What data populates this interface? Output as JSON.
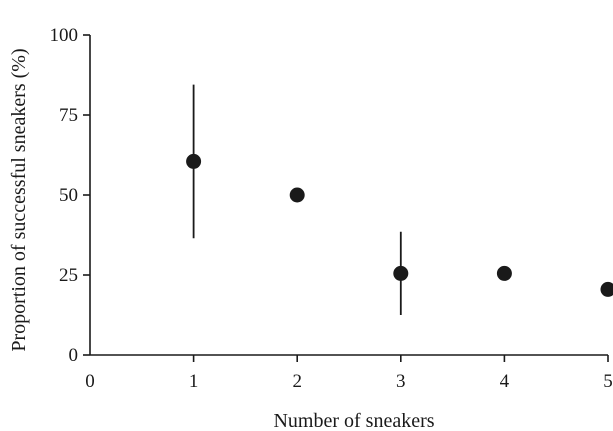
{
  "chart_data": {
    "type": "scatter",
    "title": "",
    "xlabel": "Number of sneakers",
    "ylabel": "Proportion of successful sneakers (%)",
    "xlim": [
      0,
      5
    ],
    "ylim": [
      0,
      100
    ],
    "xticks": [
      0,
      1,
      2,
      3,
      4,
      5
    ],
    "yticks": [
      0,
      25,
      50,
      75,
      100
    ],
    "grid": false,
    "legend": "none",
    "series": [
      {
        "x": [
          1,
          2,
          3,
          4,
          5
        ],
        "y": [
          60.5,
          50,
          25.5,
          25.5,
          20.5
        ],
        "error_low": [
          36.5,
          null,
          12.5,
          null,
          null
        ],
        "error_high": [
          84.5,
          null,
          38.5,
          null,
          null
        ]
      }
    ],
    "colors": {
      "marker": "#1a1a1a"
    }
  }
}
